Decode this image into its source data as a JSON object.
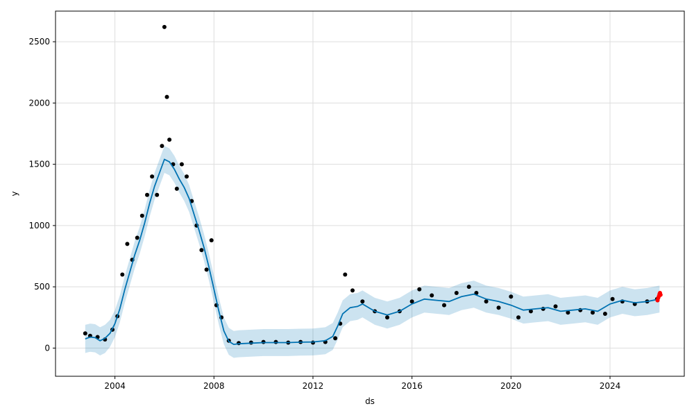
{
  "chart_data": {
    "type": "line",
    "title": "",
    "xlabel": "ds",
    "ylabel": "y",
    "x_ticks": [
      2004,
      2008,
      2012,
      2016,
      2020,
      2024
    ],
    "y_ticks": [
      0,
      500,
      1000,
      1500,
      2000,
      2500
    ],
    "xlim": [
      2001.6,
      2027.0
    ],
    "ylim": [
      -230,
      2750
    ],
    "grid": true,
    "colors": {
      "observed": "#000000",
      "forecast_line": "#0072B2",
      "interval_fill": "#0072B2",
      "recent_points": "#ff0000"
    },
    "series": [
      {
        "role": "forecast",
        "x": [
          2002.8,
          2003.0,
          2003.2,
          2003.4,
          2003.6,
          2003.8,
          2004.0,
          2004.2,
          2004.4,
          2004.6,
          2004.8,
          2005.0,
          2005.2,
          2005.4,
          2005.6,
          2005.8,
          2006.0,
          2006.2,
          2006.4,
          2006.6,
          2006.8,
          2007.0,
          2007.2,
          2007.4,
          2007.6,
          2007.8,
          2008.0,
          2008.2,
          2008.4,
          2008.6,
          2008.8,
          2009.0,
          2009.5,
          2010.0,
          2010.5,
          2011.0,
          2011.5,
          2012.0,
          2012.5,
          2012.8,
          2013.0,
          2013.2,
          2013.5,
          2013.8,
          2014.0,
          2014.5,
          2015.0,
          2015.5,
          2016.0,
          2016.5,
          2017.0,
          2017.5,
          2018.0,
          2018.5,
          2019.0,
          2019.5,
          2020.0,
          2020.5,
          2021.0,
          2021.5,
          2022.0,
          2022.5,
          2023.0,
          2023.5,
          2024.0,
          2024.5,
          2025.0,
          2025.5,
          2026.0
        ],
        "y": [
          75,
          90,
          85,
          60,
          80,
          120,
          200,
          320,
          480,
          620,
          760,
          880,
          1020,
          1180,
          1320,
          1430,
          1540,
          1520,
          1460,
          1380,
          1310,
          1220,
          1090,
          960,
          820,
          660,
          480,
          300,
          140,
          55,
          30,
          35,
          40,
          45,
          45,
          45,
          48,
          50,
          60,
          95,
          180,
          280,
          330,
          340,
          360,
          300,
          270,
          300,
          360,
          400,
          390,
          380,
          420,
          440,
          400,
          380,
          350,
          310,
          320,
          330,
          300,
          310,
          320,
          300,
          360,
          390,
          370,
          380,
          400
        ]
      },
      {
        "role": "interval_upper",
        "x": [
          2002.8,
          2003.0,
          2003.2,
          2003.4,
          2003.6,
          2003.8,
          2004.0,
          2004.2,
          2004.4,
          2004.6,
          2004.8,
          2005.0,
          2005.2,
          2005.4,
          2005.6,
          2005.8,
          2006.0,
          2006.2,
          2006.4,
          2006.6,
          2006.8,
          2007.0,
          2007.2,
          2007.4,
          2007.6,
          2007.8,
          2008.0,
          2008.2,
          2008.4,
          2008.6,
          2008.8,
          2009.0,
          2009.5,
          2010.0,
          2010.5,
          2011.0,
          2011.5,
          2012.0,
          2012.5,
          2012.8,
          2013.0,
          2013.2,
          2013.5,
          2013.8,
          2014.0,
          2014.5,
          2015.0,
          2015.5,
          2016.0,
          2016.5,
          2017.0,
          2017.5,
          2018.0,
          2018.5,
          2019.0,
          2019.5,
          2020.0,
          2020.5,
          2021.0,
          2021.5,
          2022.0,
          2022.5,
          2023.0,
          2023.5,
          2024.0,
          2024.5,
          2025.0,
          2025.5,
          2026.0
        ],
        "y": [
          190,
          200,
          195,
          170,
          190,
          230,
          310,
          430,
          590,
          730,
          870,
          990,
          1130,
          1290,
          1430,
          1540,
          1650,
          1630,
          1570,
          1490,
          1420,
          1330,
          1200,
          1070,
          930,
          770,
          590,
          410,
          250,
          165,
          140,
          145,
          150,
          155,
          155,
          155,
          158,
          160,
          170,
          205,
          290,
          390,
          440,
          450,
          470,
          410,
          380,
          410,
          470,
          510,
          500,
          490,
          530,
          550,
          510,
          490,
          460,
          420,
          430,
          440,
          410,
          420,
          430,
          410,
          470,
          500,
          480,
          490,
          510
        ]
      },
      {
        "role": "interval_lower",
        "x": [
          2002.8,
          2003.0,
          2003.2,
          2003.4,
          2003.6,
          2003.8,
          2004.0,
          2004.2,
          2004.4,
          2004.6,
          2004.8,
          2005.0,
          2005.2,
          2005.4,
          2005.6,
          2005.8,
          2006.0,
          2006.2,
          2006.4,
          2006.6,
          2006.8,
          2007.0,
          2007.2,
          2007.4,
          2007.6,
          2007.8,
          2008.0,
          2008.2,
          2008.4,
          2008.6,
          2008.8,
          2009.0,
          2009.5,
          2010.0,
          2010.5,
          2011.0,
          2011.5,
          2012.0,
          2012.5,
          2012.8,
          2013.0,
          2013.2,
          2013.5,
          2013.8,
          2014.0,
          2014.5,
          2015.0,
          2015.5,
          2016.0,
          2016.5,
          2017.0,
          2017.5,
          2018.0,
          2018.5,
          2019.0,
          2019.5,
          2020.0,
          2020.5,
          2021.0,
          2021.5,
          2022.0,
          2022.5,
          2023.0,
          2023.5,
          2024.0,
          2024.5,
          2025.0,
          2025.5,
          2026.0
        ],
        "y": [
          -40,
          -30,
          -35,
          -60,
          -40,
          10,
          90,
          210,
          370,
          510,
          650,
          770,
          910,
          1070,
          1210,
          1320,
          1430,
          1410,
          1350,
          1270,
          1200,
          1110,
          980,
          850,
          710,
          550,
          370,
          190,
          30,
          -55,
          -80,
          -75,
          -70,
          -65,
          -65,
          -65,
          -62,
          -60,
          -50,
          -15,
          70,
          170,
          220,
          230,
          250,
          190,
          160,
          190,
          250,
          290,
          280,
          270,
          310,
          330,
          290,
          270,
          240,
          200,
          210,
          220,
          190,
          200,
          210,
          190,
          250,
          280,
          260,
          270,
          290
        ]
      },
      {
        "role": "observed",
        "x": [
          2002.8,
          2003.0,
          2003.3,
          2003.6,
          2003.9,
          2004.1,
          2004.3,
          2004.5,
          2004.7,
          2004.9,
          2005.1,
          2005.3,
          2005.5,
          2005.7,
          2005.9,
          2006.0,
          2006.1,
          2006.2,
          2006.35,
          2006.5,
          2006.7,
          2006.9,
          2007.1,
          2007.3,
          2007.5,
          2007.7,
          2007.9,
          2008.1,
          2008.3,
          2008.6,
          2009.0,
          2009.5,
          2010.0,
          2010.5,
          2011.0,
          2011.5,
          2012.0,
          2012.5,
          2012.9,
          2013.1,
          2013.3,
          2013.6,
          2014.0,
          2014.5,
          2015.0,
          2015.5,
          2016.0,
          2016.3,
          2016.8,
          2017.3,
          2017.8,
          2018.3,
          2018.6,
          2019.0,
          2019.5,
          2020.0,
          2020.3,
          2020.8,
          2021.3,
          2021.8,
          2022.3,
          2022.8,
          2023.3,
          2023.8,
          2024.1,
          2024.5,
          2025.0,
          2025.5,
          2025.9
        ],
        "y": [
          120,
          100,
          90,
          70,
          150,
          260,
          600,
          850,
          720,
          900,
          1080,
          1250,
          1400,
          1250,
          1650,
          2620,
          2050,
          1700,
          1500,
          1300,
          1500,
          1400,
          1200,
          1000,
          800,
          640,
          880,
          350,
          250,
          60,
          40,
          45,
          50,
          50,
          45,
          50,
          45,
          50,
          80,
          200,
          600,
          470,
          380,
          300,
          250,
          300,
          380,
          480,
          430,
          350,
          450,
          500,
          450,
          380,
          330,
          420,
          250,
          300,
          320,
          340,
          290,
          310,
          290,
          280,
          400,
          380,
          360,
          380,
          400
        ]
      },
      {
        "role": "recent",
        "x": [
          2025.92,
          2025.95,
          2025.98,
          2026.0,
          2026.02,
          2026.04
        ],
        "y": [
          390,
          410,
          425,
          440,
          450,
          435
        ]
      }
    ]
  }
}
